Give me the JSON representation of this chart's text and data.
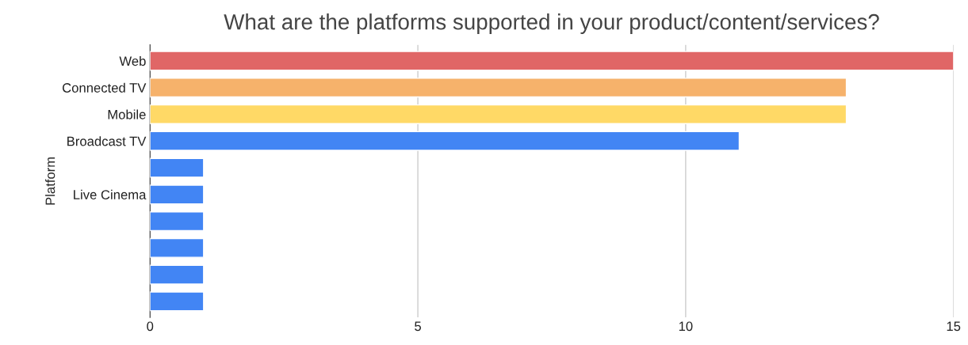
{
  "chart_data": {
    "type": "bar",
    "orientation": "horizontal",
    "title": "What are the platforms supported in your product/content/services?",
    "ylabel": "Platform",
    "categories": [
      "Web",
      "Connected TV",
      "Mobile",
      "Broadcast TV",
      null,
      "Live Cinema",
      null,
      null,
      null,
      null
    ],
    "values": [
      15,
      13,
      13,
      11,
      1,
      1,
      1,
      1,
      1,
      1
    ],
    "colors": [
      "#e06666",
      "#f6b26b",
      "#ffd966",
      "#4285f4",
      "#4285f4",
      "#4285f4",
      "#4285f4",
      "#4285f4",
      "#4285f4",
      "#4285f4"
    ],
    "xlim": [
      0,
      15
    ],
    "xticks": [
      0,
      5,
      10,
      15
    ],
    "grid": "x",
    "legend": false
  }
}
